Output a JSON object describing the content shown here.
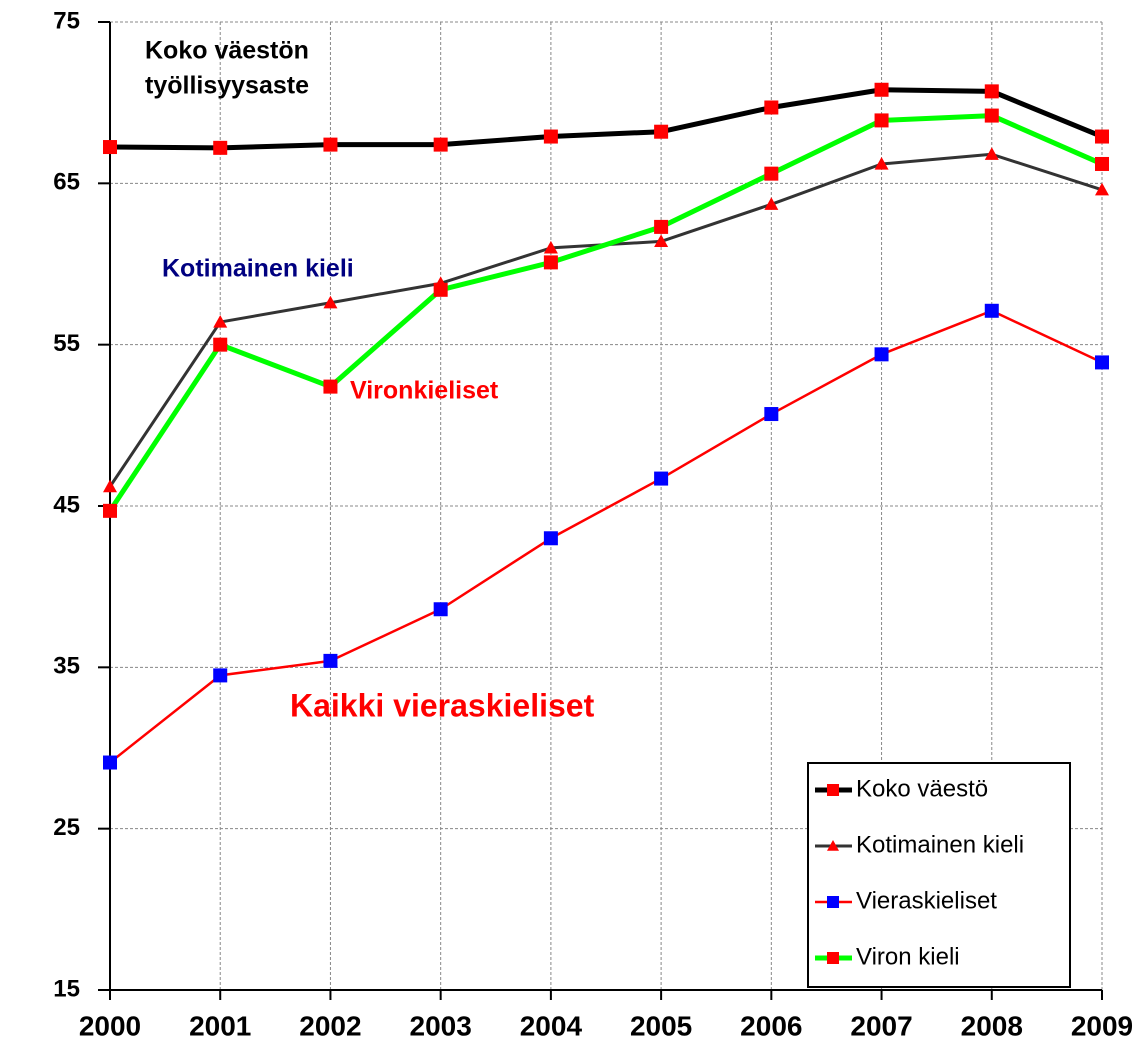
{
  "chart_data": {
    "type": "line",
    "x": [
      2000,
      2001,
      2002,
      2003,
      2004,
      2005,
      2006,
      2007,
      2008,
      2009
    ],
    "xlim": [
      2000,
      2009
    ],
    "xticks": [
      2000,
      2001,
      2002,
      2003,
      2004,
      2005,
      2006,
      2007,
      2008,
      2009
    ],
    "ylim": [
      15,
      75
    ],
    "yticks": [
      15,
      25,
      35,
      45,
      55,
      65,
      75
    ],
    "grid": true,
    "legend": "lower right",
    "series": [
      {
        "name": "Koko väestö",
        "color": "#000000",
        "marker": "square",
        "marker_color": "#ff0000",
        "values": [
          67.25,
          67.2,
          67.4,
          67.4,
          67.9,
          68.2,
          69.7,
          70.8,
          70.7,
          67.9
        ]
      },
      {
        "name": "Kotimainen kieli",
        "color": "#333333",
        "marker": "triangle",
        "marker_color": "#ff0000",
        "values": [
          46.2,
          56.4,
          57.6,
          58.8,
          61.0,
          61.4,
          63.7,
          66.2,
          66.8,
          64.6
        ]
      },
      {
        "name": "Vieraskieliset",
        "color": "#ff0000",
        "marker": "square",
        "marker_color": "#0000ff",
        "values": [
          29.1,
          34.5,
          35.4,
          38.6,
          43.0,
          46.7,
          50.7,
          54.4,
          57.1,
          53.9
        ]
      },
      {
        "name": "Viron kieli",
        "color": "#00ff00",
        "marker": "square",
        "marker_color": "#ff0000",
        "values": [
          44.7,
          55.0,
          52.4,
          58.4,
          60.1,
          62.3,
          65.6,
          68.9,
          69.2,
          66.2
        ]
      }
    ],
    "annotations": [
      {
        "lines": [
          "Koko väestön",
          "työllisyysaste"
        ],
        "color": "#000000"
      },
      {
        "lines": [
          "Kotimainen kieli"
        ],
        "color": "#000080"
      },
      {
        "lines": [
          "Vironkieliset"
        ],
        "color": "#ff0000"
      },
      {
        "lines": [
          "Kaikki vieraskieliset"
        ],
        "color": "#ff0000"
      }
    ]
  }
}
